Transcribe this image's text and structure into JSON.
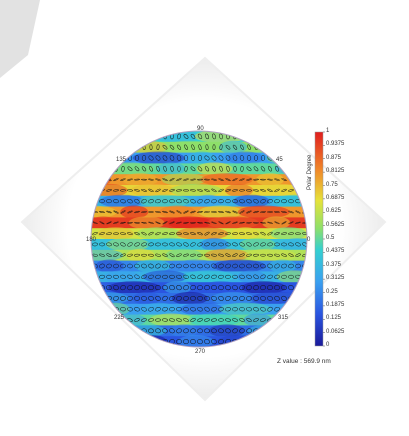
{
  "chart_data": {
    "type": "heatmap",
    "title": "",
    "polar_degree_title": "Polar Degree",
    "angle_labels": [
      "90",
      "45",
      "0",
      "315",
      "270",
      "225",
      "180",
      "135"
    ],
    "colorbar": {
      "min": 0,
      "max": 1,
      "ticks": [
        "1",
        "0.9375",
        "0.875",
        "0.8125",
        "0.75",
        "0.6875",
        "0.625",
        "0.5625",
        "0.5",
        "0.4375",
        "0.375",
        "0.3125",
        "0.25",
        "0.1875",
        "0.125",
        "0.0625",
        "0"
      ]
    },
    "z_value_text": "Z value : 569.9 nm",
    "rows_from_top": [
      {
        "level": 0.45
      },
      {
        "level": 0.55
      },
      {
        "level": 0.3
      },
      {
        "level": 0.5
      },
      {
        "level": 0.8
      },
      {
        "level": 0.7
      },
      {
        "level": 0.35
      },
      {
        "level": 0.8
      },
      {
        "level": 0.95
      },
      {
        "level": 0.65
      },
      {
        "level": 0.4
      },
      {
        "level": 0.6
      },
      {
        "level": 0.25
      },
      {
        "level": 0.35
      },
      {
        "level": 0.15
      },
      {
        "level": 0.2
      },
      {
        "level": 0.3
      },
      {
        "level": 0.5
      },
      {
        "level": 0.2
      },
      {
        "level": 0.15
      }
    ]
  }
}
